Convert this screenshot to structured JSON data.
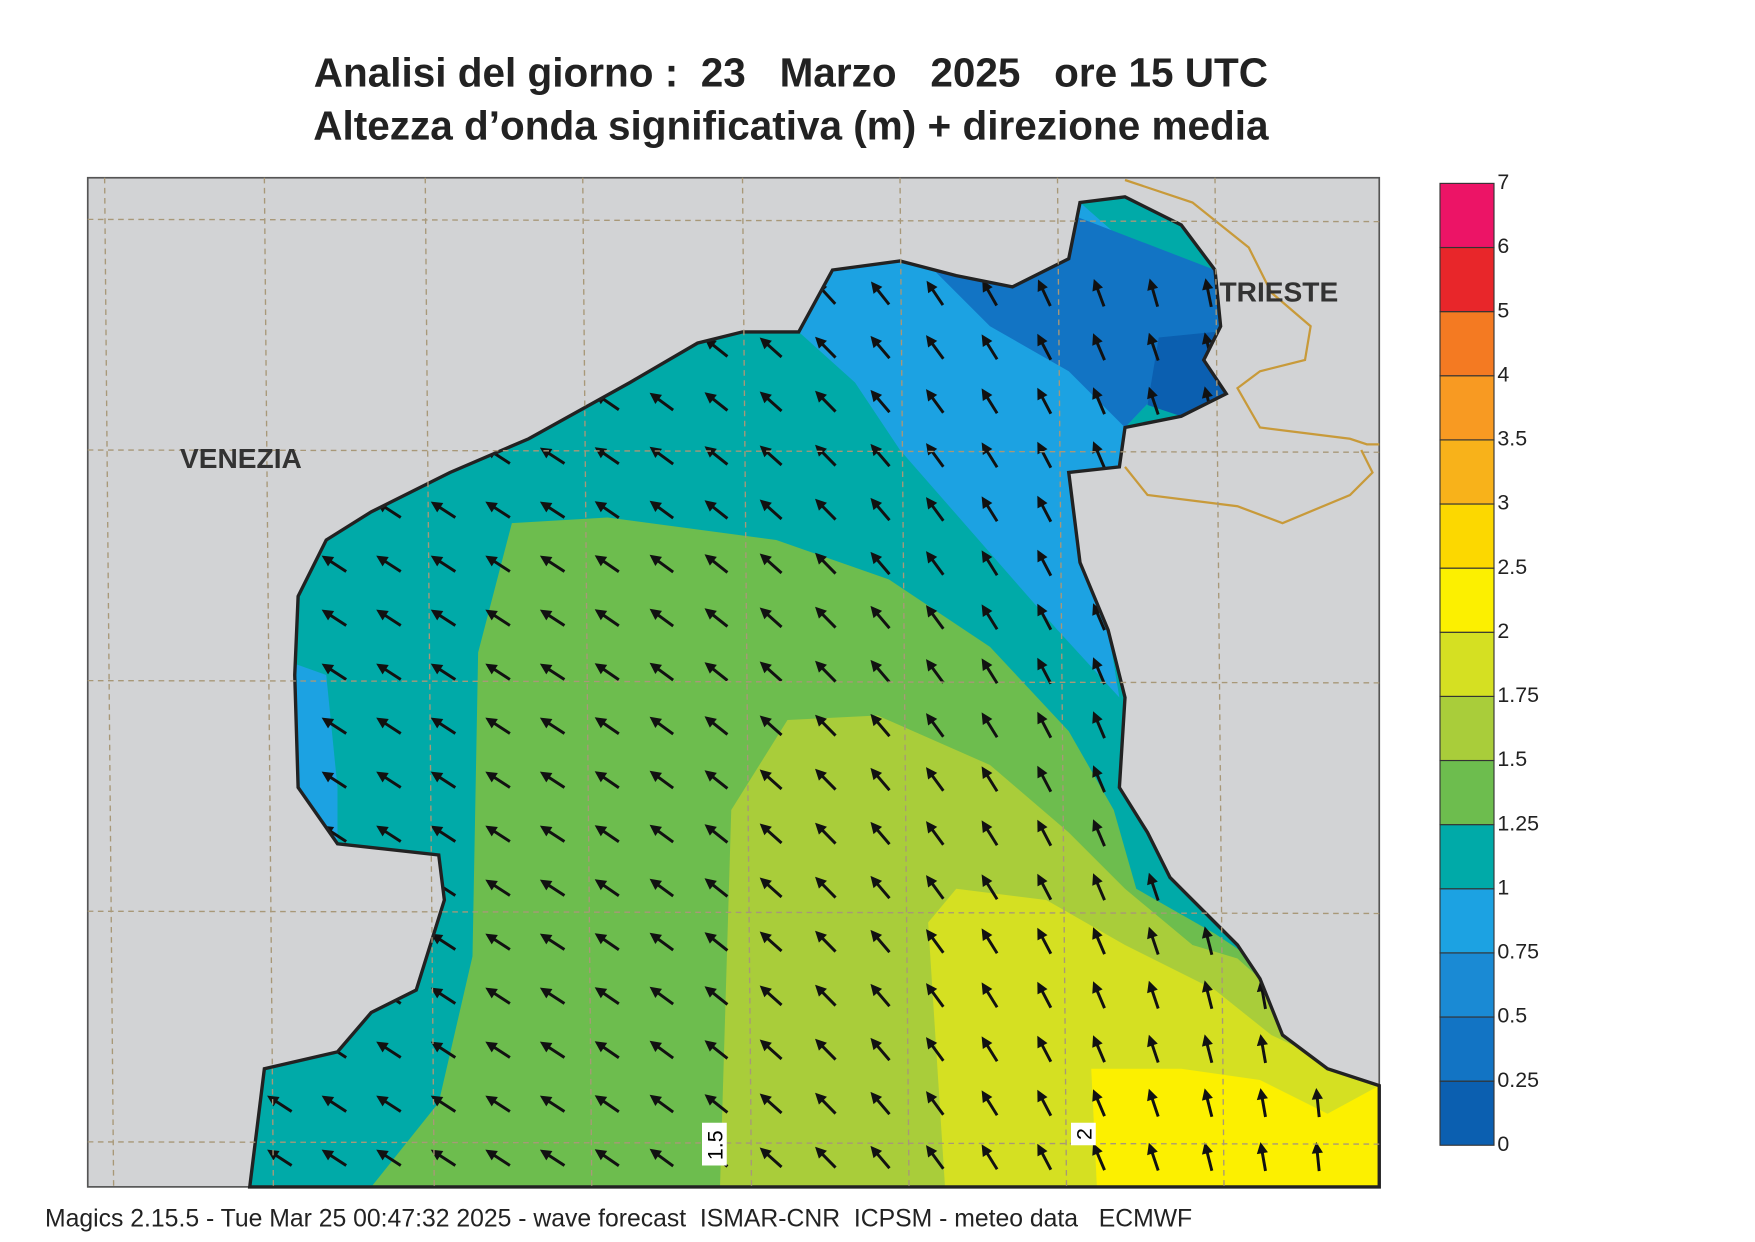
{
  "header": {
    "title": "Analisi del giorno :  23   Marzo   2025   ore 15 UTC",
    "subtitle": "Altezza d’onda significativa (m) + direzione media"
  },
  "map": {
    "places": [
      "VENEZIA",
      "TRIESTE"
    ],
    "contour_labels": [
      "1.5",
      "2"
    ]
  },
  "legend": {
    "levels": [
      0,
      0.25,
      0.5,
      0.75,
      1,
      1.25,
      1.5,
      1.75,
      2,
      2.5,
      3,
      3.5,
      4,
      5,
      6,
      7
    ],
    "colors": [
      "#0b5fb0",
      "#1274c4",
      "#1a8ad4",
      "#1ca2e2",
      "#00aaa8",
      "#6dbd4e",
      "#a9cd3a",
      "#d5e022",
      "#fcf000",
      "#fcd800",
      "#f8b21a",
      "#f89a22",
      "#f47a22",
      "#e8262a",
      "#ec1466"
    ]
  },
  "footer": "Magics 2.15.5 - Tue Mar 25 00:47:32 2025 - wave forecast  ISMAR-CNR  ICPSM - meteo data   ECMWF"
}
